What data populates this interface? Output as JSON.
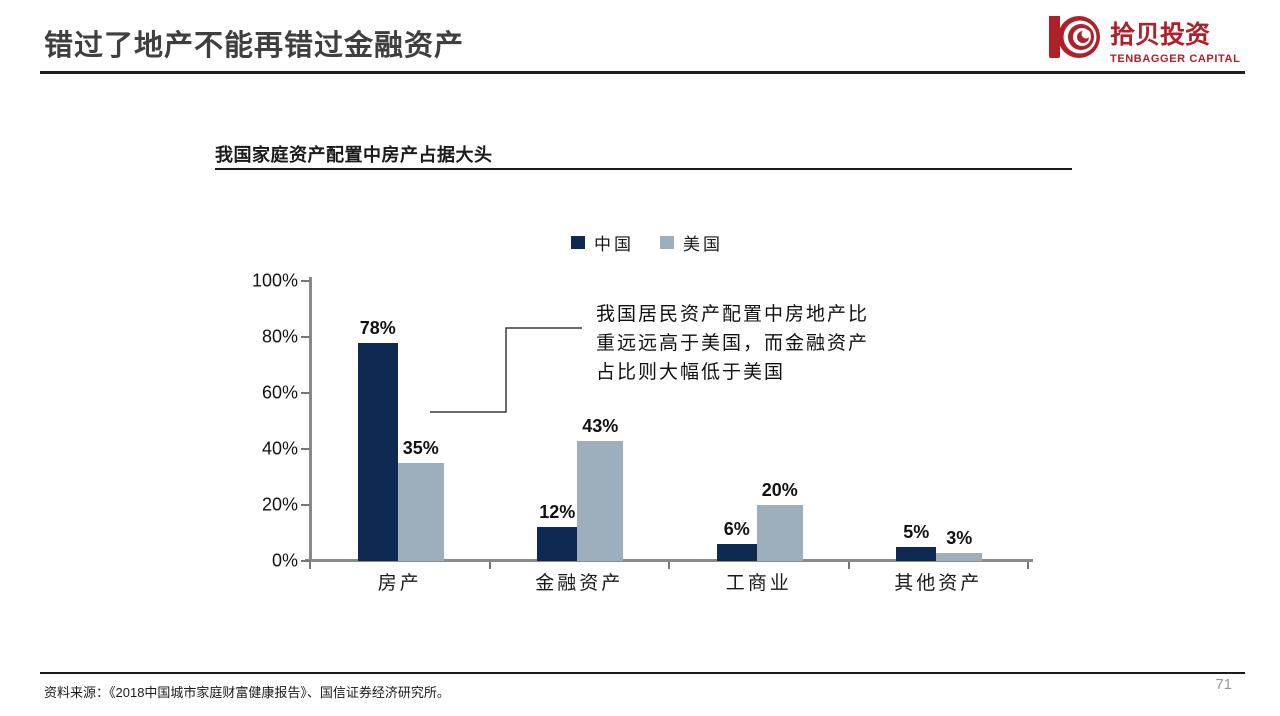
{
  "page": {
    "title": "错过了地产不能再错过金融资产",
    "page_number": "71",
    "footer_source": "资料来源：《2018中国城市家庭财富健康报告》、国信证券经济研究所。"
  },
  "logo": {
    "cn_name": "拾贝投资",
    "en_name": "TENBAGGER CAPITAL",
    "brand_color": "#ae2128"
  },
  "chart": {
    "title": "我国家庭资产配置中房产占据大头",
    "annotation": "我国居民资产配置中房地产比\n重远远高于美国，而金融资产\n占比则大幅低于美国"
  },
  "chart_data": {
    "type": "bar",
    "title": "我国家庭资产配置中房产占据大头",
    "categories": [
      "房产",
      "金融资产",
      "工商业",
      "其他资产"
    ],
    "series": [
      {
        "name": "中国",
        "color": "#0e2a52",
        "values": [
          78,
          12,
          6,
          5
        ]
      },
      {
        "name": "美国",
        "color": "#9daebd",
        "values": [
          35,
          43,
          20,
          3
        ]
      }
    ],
    "value_label_format": "percent",
    "xlabel": "",
    "ylabel": "",
    "ylim": [
      0,
      100
    ],
    "yticks": [
      "0%",
      "20%",
      "40%",
      "60%",
      "80%",
      "100%"
    ],
    "grid": false,
    "legend_position": "top",
    "annotation": "我国居民资产配置中房地产比重远远高于美国，而金融资产占比则大幅低于美国"
  }
}
